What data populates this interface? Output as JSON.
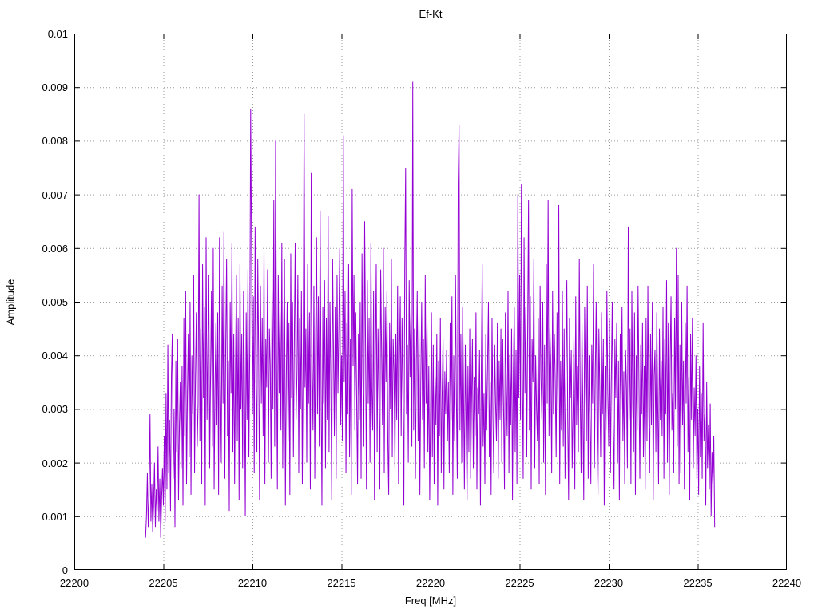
{
  "page": {
    "background": "#ffffff"
  },
  "chart_data": {
    "type": "line",
    "title": "Ef-Kt",
    "xlabel": "Freq [MHz]",
    "ylabel": "Amplitude",
    "xlim": [
      22200,
      22240
    ],
    "ylim": [
      0,
      0.01
    ],
    "x_ticks": [
      22200,
      22205,
      22210,
      22215,
      22220,
      22225,
      22230,
      22235,
      22240
    ],
    "x_tick_labels": [
      "22200",
      "22205",
      "22210",
      "22215",
      "22220",
      "22225",
      "22230",
      "22235",
      "22240"
    ],
    "y_ticks": [
      0,
      0.001,
      0.002,
      0.003,
      0.004,
      0.005,
      0.006,
      0.007,
      0.008,
      0.009,
      0.01
    ],
    "y_tick_labels": [
      "0",
      "0.001",
      "0.002",
      "0.003",
      "0.004",
      "0.005",
      "0.006",
      "0.007",
      "0.008",
      "0.009",
      "0.01"
    ],
    "grid": true,
    "legend": "none",
    "line_color": "#9400d3",
    "series": [
      {
        "name": "Ef-Kt",
        "x_start": 22204.0,
        "x_step": 0.05,
        "y_scale": 0.0001,
        "y_values": [
          6,
          10,
          18,
          8,
          14,
          29,
          9,
          16,
          7,
          12,
          20,
          8,
          15,
          11,
          23,
          9,
          17,
          6,
          13,
          19,
          12,
          25,
          9,
          33,
          15,
          42,
          18,
          28,
          11,
          36,
          44,
          17,
          30,
          8,
          39,
          22,
          43,
          13,
          27,
          35,
          19,
          38,
          12,
          47,
          25,
          52,
          16,
          33,
          44,
          21,
          50,
          14,
          40,
          29,
          55,
          18,
          36,
          48,
          23,
          31,
          70,
          24,
          45,
          16,
          57,
          32,
          49,
          12,
          62,
          28,
          41,
          55,
          19,
          37,
          52,
          23,
          60,
          15,
          34,
          46,
          27,
          48,
          14,
          62,
          35,
          20,
          53,
          31,
          63,
          17,
          42,
          58,
          25,
          39,
          11,
          50,
          33,
          61,
          22,
          44,
          16,
          38,
          55,
          24,
          47,
          13,
          57,
          30,
          44,
          19,
          52,
          36,
          10,
          48,
          28,
          56,
          21,
          41,
          86,
          59,
          29,
          51,
          18,
          64,
          35,
          22,
          58,
          40,
          13,
          53,
          31,
          47,
          25,
          60,
          16,
          43,
          34,
          56,
          20,
          45,
          38,
          17,
          52,
          30,
          69,
          23,
          80,
          42,
          15,
          55,
          33,
          48,
          26,
          61,
          19,
          44,
          58,
          12,
          36,
          50,
          24,
          46,
          14,
          59,
          32,
          50,
          21,
          43,
          61,
          28,
          37,
          55,
          18,
          47,
          30,
          52,
          16,
          40,
          85,
          34,
          45,
          20,
          57,
          31,
          48,
          15,
          74,
          38,
          26,
          53,
          17,
          44,
          62,
          29,
          51,
          23,
          67,
          35,
          12,
          49,
          31,
          54,
          19,
          47,
          28,
          66,
          22,
          50,
          36,
          13,
          58,
          41,
          25,
          49,
          17,
          55,
          33,
          45,
          60,
          27,
          40,
          24,
          81,
          35,
          52,
          18,
          46,
          29,
          57,
          21,
          43,
          14,
          71,
          38,
          55,
          26,
          48,
          32,
          16,
          44,
          28,
          50,
          17,
          59,
          36,
          23,
          65,
          42,
          15,
          54,
          31,
          47,
          20,
          61,
          34,
          26,
          52,
          13,
          39,
          57,
          22,
          45,
          33,
          15,
          56,
          41,
          27,
          60,
          18,
          49,
          35,
          52,
          24,
          14,
          46,
          30,
          58,
          21,
          43,
          37,
          19,
          44,
          28,
          53,
          16,
          38,
          51,
          25,
          47,
          32,
          12,
          56,
          75,
          29,
          42,
          20,
          54,
          36,
          48,
          23,
          91,
          26,
          45,
          17,
          39,
          52,
          24,
          48,
          14,
          35,
          50,
          28,
          43,
          19,
          55,
          31,
          46,
          22,
          38,
          13,
          30,
          48,
          21,
          42,
          16,
          36,
          27,
          44,
          12,
          39,
          25,
          47,
          18,
          33,
          43,
          15,
          37,
          29,
          41,
          24,
          35,
          18,
          46,
          28,
          51,
          14,
          40,
          24,
          55,
          32,
          17,
          72,
          83,
          26,
          44,
          20,
          49,
          34,
          15,
          42,
          27,
          13,
          38,
          22,
          45,
          17,
          31,
          43,
          19,
          36,
          25,
          48,
          15,
          34,
          29,
          41,
          12,
          37,
          57,
          23,
          33,
          16,
          44,
          26,
          38,
          50,
          21,
          35,
          14,
          47,
          29,
          18,
          42,
          31,
          24,
          46,
          17,
          39,
          28,
          45,
          20,
          43,
          30,
          15,
          48,
          34,
          25,
          52,
          18,
          40,
          27,
          45,
          13,
          37,
          49,
          22,
          41,
          16,
          70,
          32,
          55,
          28,
          72,
          38,
          17,
          62,
          33,
          49,
          21,
          44,
          69,
          26,
          51,
          15,
          43,
          35,
          58,
          19,
          40,
          30,
          24,
          47,
          16,
          53,
          36,
          28,
          50,
          20,
          42,
          14,
          57,
          31,
          69,
          25,
          45,
          38,
          18,
          52,
          29,
          44,
          35,
          21,
          48,
          30,
          68,
          16,
          39,
          26,
          52,
          23,
          45,
          17,
          36,
          54,
          28,
          13,
          47,
          32,
          41,
          19,
          29,
          44,
          15,
          51,
          27,
          38,
          22,
          58,
          33,
          18,
          46,
          30,
          13,
          49,
          35,
          24,
          53,
          17,
          40,
          28,
          16,
          42,
          31,
          57,
          19,
          37,
          50,
          25,
          14,
          45,
          34,
          21,
          48,
          29,
          43,
          12,
          38,
          26,
          52,
          33,
          23,
          47,
          18,
          36,
          50,
          27,
          15,
          43,
          32,
          46,
          20,
          39,
          13,
          44,
          30,
          49,
          24,
          37,
          16,
          41,
          34,
          19,
          64,
          28,
          45,
          16,
          52,
          31,
          22,
          48,
          14,
          40,
          26,
          53,
          35,
          17,
          42,
          29,
          46,
          21,
          38,
          15,
          47,
          24,
          53,
          30,
          18,
          44,
          27,
          50,
          13,
          36,
          41,
          22,
          48,
          32,
          16,
          45,
          28,
          39,
          25,
          49,
          17,
          43,
          29,
          54,
          20,
          46,
          14,
          38,
          51,
          26,
          33,
          18,
          47,
          30,
          60,
          23,
          55,
          16,
          42,
          18,
          50,
          27,
          39,
          15,
          46,
          31,
          53,
          22,
          36,
          13,
          44,
          28,
          47,
          19,
          34,
          25,
          40,
          17,
          30,
          14,
          38,
          21,
          33,
          17,
          46,
          24,
          29,
          12,
          35,
          19,
          27,
          15,
          31,
          10,
          22,
          16,
          25,
          8
        ]
      }
    ]
  }
}
